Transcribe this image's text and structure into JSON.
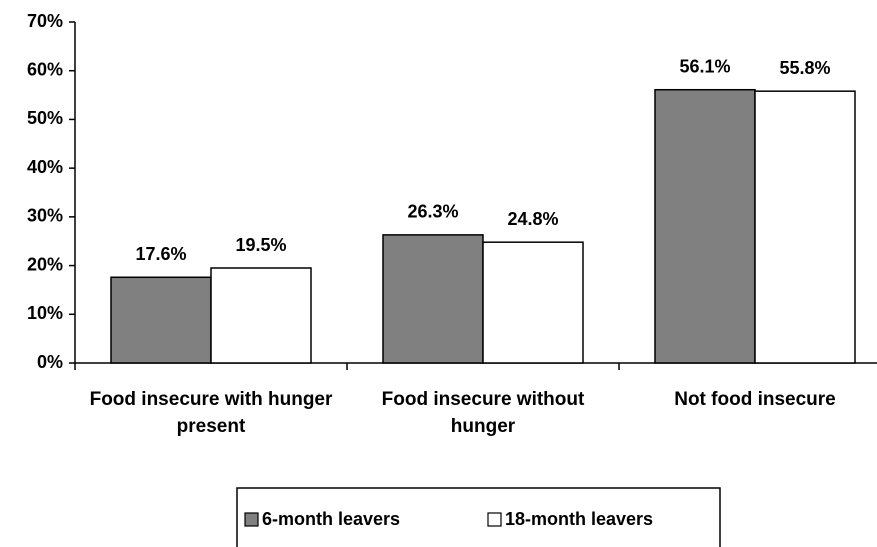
{
  "chart_data": {
    "type": "bar",
    "categories": [
      "Food insecure with hunger present",
      "Food insecure without hunger",
      "Not food insecure"
    ],
    "series": [
      {
        "name": "6-month leavers",
        "color": "#808080",
        "values": [
          17.6,
          26.3,
          56.1
        ],
        "value_labels": [
          "17.6%",
          "26.3%",
          "56.1%"
        ]
      },
      {
        "name": "18-month leavers",
        "color": "#ffffff",
        "values": [
          19.5,
          24.8,
          55.8
        ],
        "value_labels": [
          "19.5%",
          "24.8%",
          "55.8%"
        ]
      }
    ],
    "ylim": [
      0,
      70
    ],
    "yticks": [
      {
        "value": 0,
        "label": "0%"
      },
      {
        "value": 10,
        "label": "10%"
      },
      {
        "value": 20,
        "label": "20%"
      },
      {
        "value": 30,
        "label": "30%"
      },
      {
        "value": 40,
        "label": "40%"
      },
      {
        "value": 50,
        "label": "50%"
      },
      {
        "value": 60,
        "label": "60%"
      },
      {
        "value": 70,
        "label": "70%"
      }
    ],
    "legend": "bottom"
  }
}
